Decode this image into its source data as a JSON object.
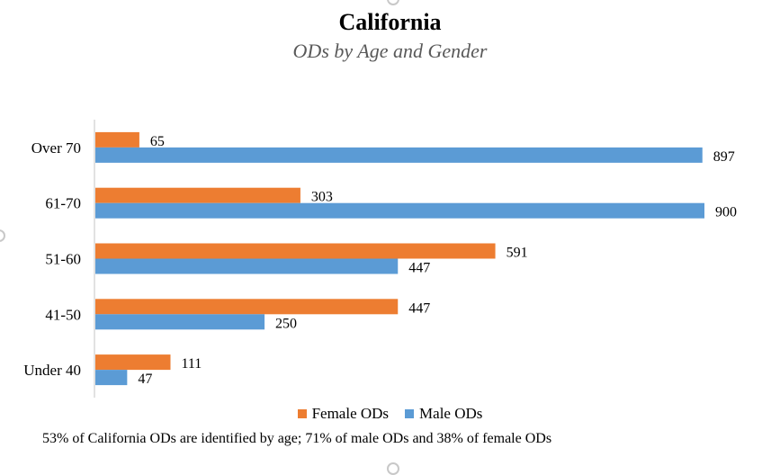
{
  "title": "California",
  "subtitle": "ODs by Age and Gender",
  "footnote": "53% of California ODs are identified by age; 71% of male ODs and 38% of female ODs",
  "colors": {
    "female": "#ED7D31",
    "male": "#5B9BD5",
    "axis": "#d9d9d9"
  },
  "chart_data": {
    "type": "bar",
    "orientation": "horizontal",
    "categories": [
      "Over 70",
      "61-70",
      "51-60",
      "41-50",
      "Under 40"
    ],
    "series": [
      {
        "name": "Female ODs",
        "values": [
          65,
          303,
          591,
          447,
          111
        ]
      },
      {
        "name": "Male ODs",
        "values": [
          897,
          900,
          447,
          250,
          47
        ]
      }
    ],
    "xlim": [
      0,
      900
    ],
    "grid": false,
    "legend": "bottom",
    "data_labels": true
  }
}
